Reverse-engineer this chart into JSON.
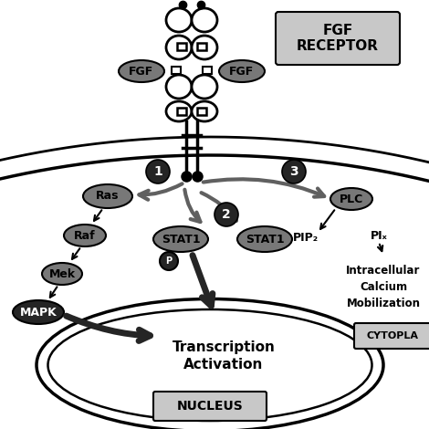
{
  "bg_color": "#ffffff",
  "receptor_box_color": "#c0c0c0",
  "mid_gray": "#787878",
  "dark_gray": "#252525",
  "arrow_gray": "#606060",
  "lighter_gray": "#c8c8c8",
  "black": "#000000",
  "white": "#ffffff",
  "label_fgf_receptor_line1": "FGF",
  "label_fgf_receptor_line2": "RECEPTOR",
  "label_nucleus": "NUCLEUS",
  "label_cytopla": "CYTOPLA",
  "label_ras": "Ras",
  "label_raf": "Raf",
  "label_mek": "Mek",
  "label_mapk": "MAPK",
  "label_stat1": "STAT1",
  "label_p": "P",
  "label_plc": "PLC",
  "label_pip2": "PIP₂",
  "label_pi": "PIₓ",
  "label_intracellular": "Intracellular\nCalcium\nMobilization",
  "label_transcription": "Transcription\nActivation",
  "label_1": "1",
  "label_2": "2",
  "label_3": "3",
  "label_fgf": "FGF"
}
